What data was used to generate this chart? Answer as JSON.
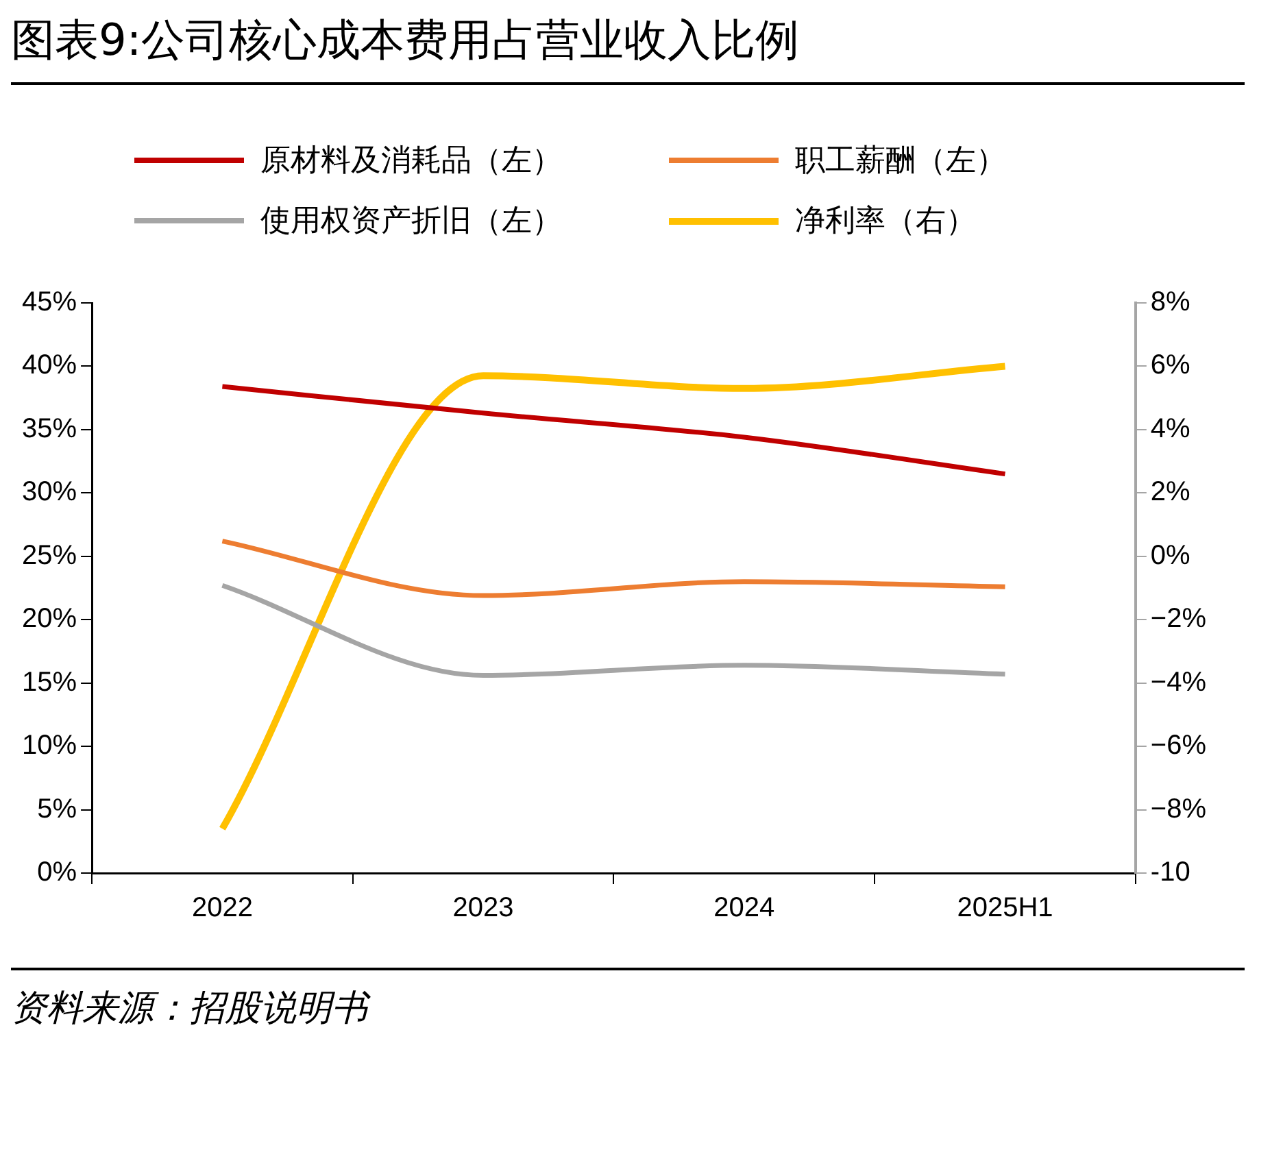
{
  "chart_data": {
    "type": "line",
    "title": "图表9:公司核心成本费用占营业收入比例",
    "categories": [
      "2022",
      "2023",
      "2024",
      "2025H1"
    ],
    "series": [
      {
        "name": "原材料及消耗品（左）",
        "color": "#c00000",
        "values": [
          38.4,
          36.3,
          34.4,
          31.5
        ]
      },
      {
        "name": "职工薪酬（左）",
        "color": "#ed7d31",
        "values": [
          26.2,
          21.9,
          23.0,
          22.6
        ]
      },
      {
        "name": "使用权资产折旧（左）",
        "color": "#a5a5a5",
        "values": [
          22.7,
          15.6,
          16.4,
          15.7
        ]
      },
      {
        "name": "净利率（右）",
        "color": "#ffc000",
        "axis": "y2",
        "values": [
          -8.6,
          5.7,
          5.3,
          6.0
        ]
      }
    ],
    "ylim": [
      0,
      45
    ],
    "yticks": [
      {
        "value": 0,
        "label": "0%"
      },
      {
        "value": 5,
        "label": "5%"
      },
      {
        "value": 10,
        "label": "10%"
      },
      {
        "value": 15,
        "label": "15%"
      },
      {
        "value": 20,
        "label": "20%"
      },
      {
        "value": 25,
        "label": "25%"
      },
      {
        "value": 30,
        "label": "30%"
      },
      {
        "value": 35,
        "label": "35%"
      },
      {
        "value": 40,
        "label": "40%"
      },
      {
        "value": 45,
        "label": "45%"
      }
    ],
    "y2lim": [
      -10,
      8
    ],
    "y2ticks": [
      {
        "value": -10,
        "label": "-10"
      },
      {
        "value": -8,
        "label": "−8%"
      },
      {
        "value": -6,
        "label": "−6%"
      },
      {
        "value": -4,
        "label": "−4%"
      },
      {
        "value": -2,
        "label": "−2%"
      },
      {
        "value": 0,
        "label": "0%"
      },
      {
        "value": 2,
        "label": "2%"
      },
      {
        "value": 4,
        "label": "4%"
      },
      {
        "value": 6,
        "label": "6%"
      },
      {
        "value": 8,
        "label": "8%"
      }
    ],
    "grid": false,
    "legend": "top",
    "marker": "none",
    "annotations": [
      "资料来源：招股说明书"
    ]
  }
}
